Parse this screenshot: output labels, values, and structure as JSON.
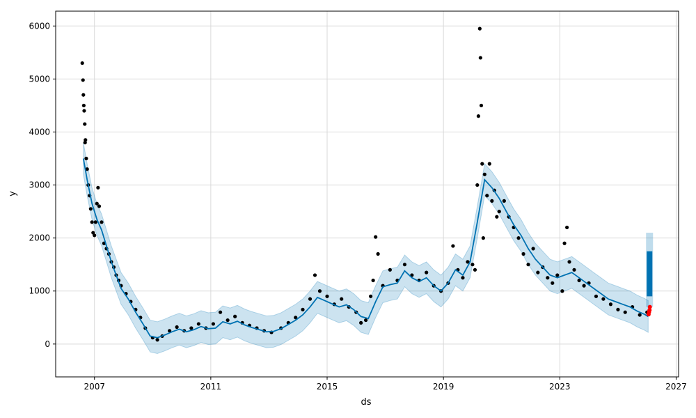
{
  "chart_data": {
    "type": "line",
    "title": "",
    "xlabel": "ds",
    "ylabel": "y",
    "xlim": [
      "2005-09-01",
      "2027-02-01"
    ],
    "ylim": [
      -620,
      6280
    ],
    "x_ticks": [
      "2007",
      "2011",
      "2015",
      "2019",
      "2023",
      "2027"
    ],
    "y_ticks": [
      0,
      1000,
      2000,
      3000,
      4000,
      5000,
      6000
    ],
    "grid": true,
    "colors": {
      "observed": "#000000",
      "forecast": "#0072B2",
      "uncertainty": "#0072B2",
      "highlight": "#ff0000"
    },
    "series": [
      {
        "kind": "observed-points",
        "points": [
          [
            "2006-08-01",
            5300
          ],
          [
            "2006-08-10",
            4980
          ],
          [
            "2006-08-15",
            4700
          ],
          [
            "2006-08-20",
            4500
          ],
          [
            "2006-08-25",
            4400
          ],
          [
            "2006-09-01",
            4150
          ],
          [
            "2006-09-05",
            3800
          ],
          [
            "2006-09-10",
            3850
          ],
          [
            "2006-09-20",
            3500
          ],
          [
            "2006-10-01",
            3300
          ],
          [
            "2006-10-15",
            3000
          ],
          [
            "2006-11-01",
            2800
          ],
          [
            "2006-11-15",
            2550
          ],
          [
            "2006-12-01",
            2300
          ],
          [
            "2006-12-15",
            2100
          ],
          [
            "2007-01-01",
            2050
          ],
          [
            "2007-01-15",
            2300
          ],
          [
            "2007-02-01",
            2650
          ],
          [
            "2007-02-15",
            2950
          ],
          [
            "2007-03-01",
            2600
          ],
          [
            "2007-04-01",
            2300
          ],
          [
            "2007-05-01",
            1900
          ],
          [
            "2007-06-01",
            1800
          ],
          [
            "2007-07-01",
            1700
          ],
          [
            "2007-08-01",
            1550
          ],
          [
            "2007-09-01",
            1450
          ],
          [
            "2007-10-01",
            1300
          ],
          [
            "2007-11-01",
            1200
          ],
          [
            "2007-12-01",
            1100
          ],
          [
            "2008-02-01",
            950
          ],
          [
            "2008-04-01",
            800
          ],
          [
            "2008-06-01",
            650
          ],
          [
            "2008-08-01",
            500
          ],
          [
            "2008-10-01",
            300
          ],
          [
            "2009-01-01",
            120
          ],
          [
            "2009-03-01",
            80
          ],
          [
            "2009-05-01",
            150
          ],
          [
            "2009-08-01",
            250
          ],
          [
            "2009-11-01",
            320
          ],
          [
            "2010-02-01",
            250
          ],
          [
            "2010-05-01",
            300
          ],
          [
            "2010-08-01",
            380
          ],
          [
            "2010-11-01",
            300
          ],
          [
            "2011-02-01",
            380
          ],
          [
            "2011-05-01",
            600
          ],
          [
            "2011-08-01",
            450
          ],
          [
            "2011-11-01",
            520
          ],
          [
            "2012-02-01",
            400
          ],
          [
            "2012-05-01",
            350
          ],
          [
            "2012-08-01",
            300
          ],
          [
            "2012-11-01",
            250
          ],
          [
            "2013-02-01",
            220
          ],
          [
            "2013-06-01",
            300
          ],
          [
            "2013-09-01",
            400
          ],
          [
            "2013-12-01",
            500
          ],
          [
            "2014-03-01",
            650
          ],
          [
            "2014-06-01",
            850
          ],
          [
            "2014-08-01",
            1300
          ],
          [
            "2014-10-01",
            1000
          ],
          [
            "2015-01-01",
            900
          ],
          [
            "2015-04-01",
            750
          ],
          [
            "2015-07-01",
            850
          ],
          [
            "2015-10-01",
            700
          ],
          [
            "2016-01-01",
            600
          ],
          [
            "2016-03-01",
            400
          ],
          [
            "2016-05-01",
            450
          ],
          [
            "2016-07-01",
            900
          ],
          [
            "2016-08-01",
            1200
          ],
          [
            "2016-09-01",
            2020
          ],
          [
            "2016-10-01",
            1700
          ],
          [
            "2016-12-01",
            1100
          ],
          [
            "2017-03-01",
            1400
          ],
          [
            "2017-06-01",
            1200
          ],
          [
            "2017-09-01",
            1500
          ],
          [
            "2017-12-01",
            1300
          ],
          [
            "2018-03-01",
            1200
          ],
          [
            "2018-06-01",
            1350
          ],
          [
            "2018-09-01",
            1100
          ],
          [
            "2018-12-01",
            1000
          ],
          [
            "2019-03-01",
            1150
          ],
          [
            "2019-05-01",
            1850
          ],
          [
            "2019-07-01",
            1400
          ],
          [
            "2019-09-01",
            1250
          ],
          [
            "2019-11-01",
            1550
          ],
          [
            "2020-01-01",
            1500
          ],
          [
            "2020-02-01",
            1400
          ],
          [
            "2020-03-01",
            3000
          ],
          [
            "2020-03-15",
            4300
          ],
          [
            "2020-04-01",
            5950
          ],
          [
            "2020-04-10",
            5400
          ],
          [
            "2020-04-20",
            4500
          ],
          [
            "2020-05-01",
            3400
          ],
          [
            "2020-05-15",
            2000
          ],
          [
            "2020-06-01",
            3200
          ],
          [
            "2020-07-01",
            2800
          ],
          [
            "2020-08-01",
            3400
          ],
          [
            "2020-09-01",
            2700
          ],
          [
            "2020-10-01",
            2900
          ],
          [
            "2020-11-01",
            2400
          ],
          [
            "2020-12-01",
            2500
          ],
          [
            "2021-02-01",
            2700
          ],
          [
            "2021-04-01",
            2400
          ],
          [
            "2021-06-01",
            2200
          ],
          [
            "2021-08-01",
            2000
          ],
          [
            "2021-10-01",
            1700
          ],
          [
            "2021-12-01",
            1500
          ],
          [
            "2022-02-01",
            1800
          ],
          [
            "2022-04-01",
            1350
          ],
          [
            "2022-06-01",
            1450
          ],
          [
            "2022-08-01",
            1250
          ],
          [
            "2022-10-01",
            1150
          ],
          [
            "2022-12-01",
            1300
          ],
          [
            "2023-02-01",
            1000
          ],
          [
            "2023-03-01",
            1900
          ],
          [
            "2023-04-01",
            2200
          ],
          [
            "2023-05-01",
            1550
          ],
          [
            "2023-07-01",
            1400
          ],
          [
            "2023-09-01",
            1200
          ],
          [
            "2023-11-01",
            1100
          ],
          [
            "2024-01-01",
            1150
          ],
          [
            "2024-04-01",
            900
          ],
          [
            "2024-07-01",
            850
          ],
          [
            "2024-10-01",
            750
          ],
          [
            "2025-01-01",
            650
          ],
          [
            "2025-04-01",
            600
          ],
          [
            "2025-07-01",
            700
          ],
          [
            "2025-10-01",
            550
          ],
          [
            "2026-01-01",
            600
          ]
        ]
      },
      {
        "kind": "forecast-line",
        "points": [
          [
            "2006-08-15",
            3500
          ],
          [
            "2006-10-01",
            3100
          ],
          [
            "2006-12-01",
            2650
          ],
          [
            "2007-02-01",
            2350
          ],
          [
            "2007-04-01",
            2150
          ],
          [
            "2007-06-01",
            1850
          ],
          [
            "2007-08-01",
            1550
          ],
          [
            "2007-10-01",
            1300
          ],
          [
            "2007-12-01",
            1050
          ],
          [
            "2008-03-01",
            850
          ],
          [
            "2008-06-01",
            600
          ],
          [
            "2008-09-01",
            380
          ],
          [
            "2008-12-01",
            150
          ],
          [
            "2009-03-01",
            120
          ],
          [
            "2009-06-01",
            170
          ],
          [
            "2009-09-01",
            230
          ],
          [
            "2009-12-01",
            280
          ],
          [
            "2010-03-01",
            230
          ],
          [
            "2010-06-01",
            270
          ],
          [
            "2010-09-01",
            330
          ],
          [
            "2010-12-01",
            290
          ],
          [
            "2011-03-01",
            300
          ],
          [
            "2011-06-01",
            420
          ],
          [
            "2011-09-01",
            380
          ],
          [
            "2011-12-01",
            430
          ],
          [
            "2012-03-01",
            360
          ],
          [
            "2012-06-01",
            310
          ],
          [
            "2012-09-01",
            270
          ],
          [
            "2012-12-01",
            230
          ],
          [
            "2013-03-01",
            240
          ],
          [
            "2013-06-01",
            290
          ],
          [
            "2013-09-01",
            370
          ],
          [
            "2013-12-01",
            450
          ],
          [
            "2014-03-01",
            550
          ],
          [
            "2014-06-01",
            700
          ],
          [
            "2014-09-01",
            880
          ],
          [
            "2014-12-01",
            820
          ],
          [
            "2015-03-01",
            760
          ],
          [
            "2015-06-01",
            700
          ],
          [
            "2015-09-01",
            740
          ],
          [
            "2015-12-01",
            650
          ],
          [
            "2016-03-01",
            520
          ],
          [
            "2016-06-01",
            480
          ],
          [
            "2016-09-01",
            800
          ],
          [
            "2016-12-01",
            1080
          ],
          [
            "2017-03-01",
            1120
          ],
          [
            "2017-06-01",
            1150
          ],
          [
            "2017-09-01",
            1380
          ],
          [
            "2017-12-01",
            1250
          ],
          [
            "2018-03-01",
            1180
          ],
          [
            "2018-06-01",
            1250
          ],
          [
            "2018-09-01",
            1100
          ],
          [
            "2018-12-01",
            1000
          ],
          [
            "2019-03-01",
            1150
          ],
          [
            "2019-06-01",
            1400
          ],
          [
            "2019-09-01",
            1300
          ],
          [
            "2019-12-01",
            1550
          ],
          [
            "2020-03-01",
            2300
          ],
          [
            "2020-06-01",
            3100
          ],
          [
            "2020-09-01",
            2950
          ],
          [
            "2020-12-01",
            2750
          ],
          [
            "2021-03-01",
            2500
          ],
          [
            "2021-06-01",
            2250
          ],
          [
            "2021-09-01",
            2050
          ],
          [
            "2021-12-01",
            1800
          ],
          [
            "2022-03-01",
            1600
          ],
          [
            "2022-06-01",
            1450
          ],
          [
            "2022-09-01",
            1300
          ],
          [
            "2022-12-01",
            1250
          ],
          [
            "2023-03-01",
            1300
          ],
          [
            "2023-06-01",
            1350
          ],
          [
            "2023-09-01",
            1250
          ],
          [
            "2023-12-01",
            1150
          ],
          [
            "2024-03-01",
            1050
          ],
          [
            "2024-06-01",
            950
          ],
          [
            "2024-09-01",
            850
          ],
          [
            "2024-12-01",
            800
          ],
          [
            "2025-03-01",
            750
          ],
          [
            "2025-06-01",
            700
          ],
          [
            "2025-09-01",
            620
          ],
          [
            "2025-12-01",
            560
          ],
          [
            "2026-01-15",
            520
          ]
        ]
      },
      {
        "kind": "uncertainty-band",
        "width": 600
      },
      {
        "kind": "future-forecast",
        "x": "2026-02-01",
        "range": [
          900,
          1750
        ],
        "band": [
          700,
          2100
        ]
      },
      {
        "kind": "highlight-points",
        "points": [
          [
            "2026-01-20",
            560
          ],
          [
            "2026-01-25",
            600
          ],
          [
            "2026-02-01",
            640
          ],
          [
            "2026-02-05",
            700
          ]
        ]
      }
    ]
  }
}
